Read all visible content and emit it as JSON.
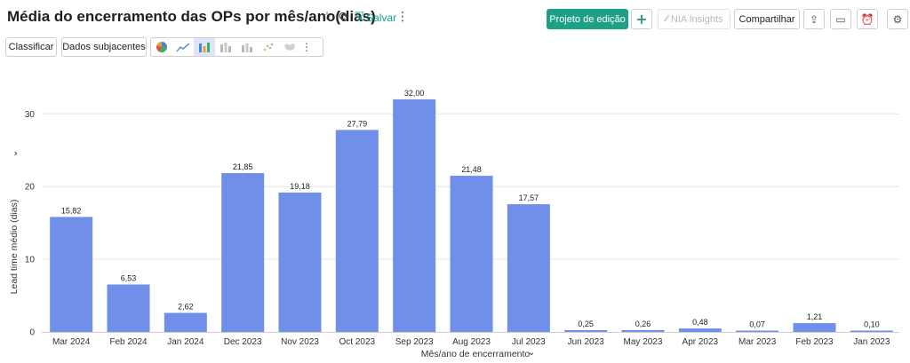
{
  "header": {
    "title": "Média do encerramento das OPs por mês/ano(dias)",
    "save_label": "Salvar",
    "edit_project_label": "Projeto de edição",
    "nia_label": "NIA Insights",
    "share_label": "Compartilhar"
  },
  "toolbar": {
    "sort_label": "Classificar",
    "underlying_label": "Dados subjacentes"
  },
  "colors": {
    "bar": "#6f8fe8",
    "primary": "#1ea086",
    "grid": "#e6e6e6"
  },
  "icons": [
    "star-icon",
    "refresh-icon",
    "save-icon",
    "more-vertical-icon",
    "add-icon",
    "nia-icon",
    "export-icon",
    "comment-icon",
    "alarm-icon",
    "settings-icon",
    "pie-chart-icon",
    "line-chart-icon",
    "bar-chart-icon",
    "stacked-bar-icon",
    "grouped-bar-icon",
    "scatter-icon",
    "map-icon"
  ],
  "chart_data": {
    "type": "bar",
    "categories": [
      "Mar 2024",
      "Feb 2024",
      "Jan 2024",
      "Dec 2023",
      "Nov 2023",
      "Oct 2023",
      "Sep 2023",
      "Aug 2023",
      "Jul 2023",
      "Jun 2023",
      "May 2023",
      "Apr 2023",
      "Mar 2023",
      "Feb 2023",
      "Jan 2023"
    ],
    "values": [
      15.82,
      6.53,
      2.62,
      21.85,
      19.18,
      27.79,
      32.0,
      21.48,
      17.57,
      0.25,
      0.26,
      0.48,
      0.07,
      1.21,
      0.1
    ],
    "value_labels": [
      "15,82",
      "6,53",
      "2,62",
      "21,85",
      "19,18",
      "27,79",
      "32,00",
      "21,48",
      "17,57",
      "0,25",
      "0,26",
      "0,48",
      "0,07",
      "1,21",
      "0,10"
    ],
    "xlabel": "Mês/ano de encerramento",
    "ylabel": "Lead time médio (dias)",
    "ylim": [
      0,
      35
    ],
    "yticks": [
      0,
      10,
      20,
      30
    ],
    "grid": true
  }
}
